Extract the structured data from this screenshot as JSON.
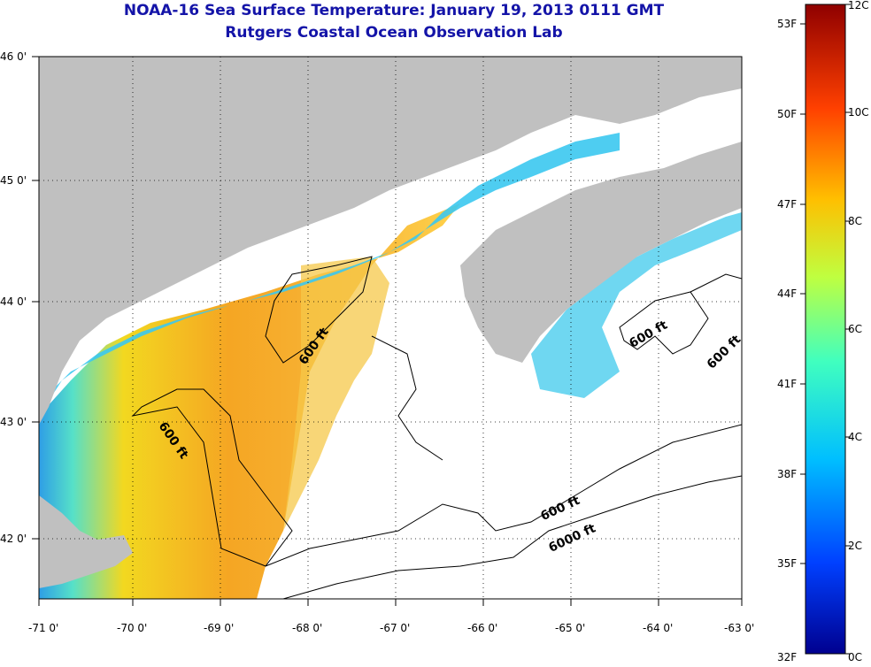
{
  "header": {
    "title": "NOAA-16 Sea Surface Temperature:  January 19, 2013 0111 GMT",
    "subtitle": "Rutgers Coastal Ocean Observation Lab"
  },
  "map": {
    "lon_labels": [
      "-71 0'",
      "-70 0'",
      "-69 0'",
      "-68 0'",
      "-67 0'",
      "-66 0'",
      "-65 0'",
      "-64 0'",
      "-63 0'"
    ],
    "lat_labels": [
      "46 0'",
      "45 0'",
      "44 0'",
      "43 0'",
      "42 0'"
    ],
    "contour_labels": [
      "600 ft",
      "600 ft",
      "600 ft",
      "600 ft",
      "600 ft",
      "6000 ft"
    ]
  },
  "colorbar": {
    "f_labels": [
      "53F",
      "50F",
      "47F",
      "44F",
      "41F",
      "38F",
      "35F",
      "32F"
    ],
    "c_labels": [
      "12C",
      "10C",
      "8C",
      "6C",
      "4C",
      "2C",
      "0C"
    ],
    "colors": [
      "#00008f",
      "#0040ff",
      "#00bfff",
      "#40ffbf",
      "#bfff40",
      "#ffbf00",
      "#ff4000",
      "#8f0000"
    ]
  },
  "colors": {
    "land": "#c0c0c0",
    "title": "#1414a8",
    "cold_water": "#3bc8f0",
    "warm_water": "#f5a623"
  }
}
